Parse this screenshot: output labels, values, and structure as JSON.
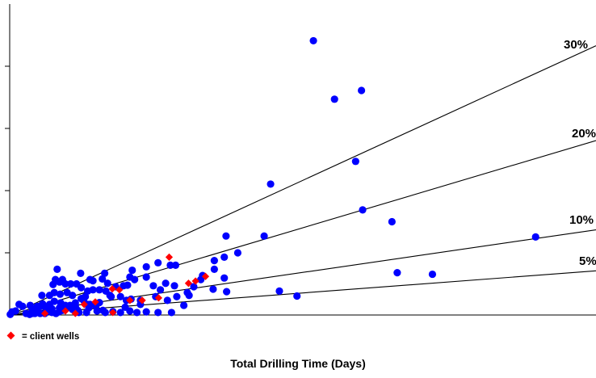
{
  "chart_data": {
    "type": "scatter",
    "title": "",
    "xlabel": "Total Drilling Time (Days)",
    "ylabel": "",
    "xlim": [
      0,
      100
    ],
    "ylim": [
      0,
      100
    ],
    "legend": {
      "placement": "bottom-left",
      "marker": "diamond",
      "label": "= client wells",
      "color": "#ff0000"
    },
    "reference_lines": [
      {
        "label": "30%",
        "slope": 0.866
      },
      {
        "label": "20%",
        "slope": 0.561
      },
      {
        "label": "10%",
        "slope": 0.274
      },
      {
        "label": "5%",
        "slope": 0.142
      }
    ],
    "series": [
      {
        "color": "#0000ff",
        "marker": "circle",
        "points": [
          [
            51.8,
            88.2
          ],
          [
            55.4,
            69.4
          ],
          [
            60,
            72.2
          ],
          [
            59,
            49.4
          ],
          [
            60.2,
            33.8
          ],
          [
            65.2,
            30.0
          ],
          [
            44.5,
            42.1
          ],
          [
            36.9,
            25.4
          ],
          [
            43.4,
            25.4
          ],
          [
            89.7,
            25.1
          ],
          [
            66.1,
            13.6
          ],
          [
            72.1,
            13.1
          ],
          [
            49,
            6.1
          ],
          [
            46,
            7.7
          ],
          [
            36.6,
            11.9
          ],
          [
            38.9,
            20.0
          ],
          [
            36.6,
            18.6
          ],
          [
            34.9,
            17.5
          ],
          [
            34.9,
            14.7
          ],
          [
            30.6,
            6.3
          ],
          [
            32.9,
            12.7
          ],
          [
            25.3,
            16.8
          ],
          [
            23.3,
            15.5
          ],
          [
            21.3,
            11.4
          ],
          [
            20.9,
            14.4
          ],
          [
            20.5,
            12.2
          ],
          [
            20.1,
            9.6
          ],
          [
            25.7,
            8.1
          ],
          [
            24.5,
            9.4
          ],
          [
            23.3,
            12.2
          ],
          [
            26.6,
            10.2
          ],
          [
            28.1,
            9.4
          ],
          [
            31.4,
            9.1
          ],
          [
            30.3,
            7.2
          ],
          [
            34.7,
            8.3
          ],
          [
            37.0,
            7.5
          ],
          [
            28.5,
            5.9
          ],
          [
            24.9,
            5.9
          ],
          [
            26.9,
            4.7
          ],
          [
            29.7,
            3.1
          ],
          [
            22.3,
            4.7
          ],
          [
            20.7,
            5.1
          ],
          [
            18.9,
            5.9
          ],
          [
            17.3,
            5.9
          ],
          [
            15.3,
            4.0
          ],
          [
            13.7,
            3.4
          ],
          [
            11.2,
            2.7
          ],
          [
            10,
            2.7
          ],
          [
            8.5,
            2.3
          ],
          [
            7.2,
            2.0
          ],
          [
            5.6,
            3.6
          ],
          [
            4.4,
            2.0
          ],
          [
            3.8,
            1.3
          ],
          [
            20.5,
            1.3
          ],
          [
            23.3,
            1.0
          ],
          [
            27.6,
            0.8
          ],
          [
            25.3,
            0.8
          ],
          [
            21.7,
            0.8
          ],
          [
            18.9,
            0.8
          ],
          [
            17.6,
            1.1
          ],
          [
            16.3,
            0.8
          ],
          [
            15.9,
            1.5
          ],
          [
            14.9,
            1.3
          ],
          [
            13.1,
            0.8
          ],
          [
            11.8,
            0.8
          ],
          [
            11.6,
            1.5
          ],
          [
            10.7,
            1.8
          ],
          [
            9.8,
            2.3
          ],
          [
            9.0,
            1.5
          ],
          [
            8.4,
            1.0
          ],
          [
            7.9,
            0.5
          ],
          [
            7.2,
            0.8
          ],
          [
            6.6,
            1.3
          ],
          [
            6.0,
            0.5
          ],
          [
            5.2,
            0.5
          ],
          [
            4.7,
            0.8
          ],
          [
            4.3,
            0.5
          ],
          [
            3.8,
            0.5
          ],
          [
            3.4,
            0.2
          ],
          [
            2.8,
            0.5
          ],
          [
            14.7,
            2.8
          ],
          [
            13.5,
            2.3
          ],
          [
            13.3,
            3.4
          ],
          [
            12.6,
            4.7
          ],
          [
            12.2,
            5.3
          ],
          [
            11.2,
            3.9
          ],
          [
            10.3,
            3.1
          ],
          [
            9.5,
            3.1
          ],
          [
            8.7,
            3.9
          ],
          [
            7.6,
            4.4
          ],
          [
            6.8,
            3.4
          ],
          [
            6.1,
            2.5
          ],
          [
            5.2,
            2.8
          ],
          [
            4.7,
            2.8
          ],
          [
            3.5,
            3.1
          ],
          [
            2.2,
            2.8
          ],
          [
            1.6,
            3.4
          ],
          [
            1.0,
            1.3
          ],
          [
            0.4,
            1.0
          ],
          [
            0.1,
            0.2
          ],
          [
            12.9,
            5.9
          ],
          [
            10.7,
            6.3
          ],
          [
            9.8,
            7.2
          ],
          [
            8.6,
            6.7
          ],
          [
            7.6,
            7.2
          ],
          [
            6.8,
            6.3
          ],
          [
            5.5,
            6.3
          ],
          [
            17.1,
            6.3
          ],
          [
            16.4,
            7.7
          ],
          [
            15.3,
            8.1
          ],
          [
            14.2,
            8.1
          ],
          [
            13.3,
            7.7
          ],
          [
            12.2,
            8.8
          ],
          [
            11.4,
            10.0
          ],
          [
            10.4,
            10.0
          ],
          [
            9.5,
            10.0
          ],
          [
            9.0,
            11.4
          ],
          [
            8.5,
            10.6
          ],
          [
            7.8,
            11.4
          ],
          [
            7.4,
            9.8
          ],
          [
            8.1,
            14.7
          ],
          [
            16.7,
            10.2
          ],
          [
            18.1,
            9.1
          ],
          [
            19.4,
            9.4
          ],
          [
            14.2,
            11.0
          ],
          [
            15.8,
            11.6
          ],
          [
            16.2,
            13.4
          ],
          [
            28.3,
            16.0
          ],
          [
            32.6,
            11.4
          ],
          [
            22.3,
            3.4
          ],
          [
            19.7,
            2.5
          ],
          [
            19.9,
            4.7
          ],
          [
            12.1,
            13.4
          ],
          [
            13.7,
            11.4
          ],
          [
            27.4,
            16.0
          ]
        ]
      },
      {
        "color": "#ff0000",
        "marker": "diamond",
        "points": [
          [
            27.2,
            18.6
          ],
          [
            33.4,
            12.4
          ],
          [
            30.5,
            10.2
          ],
          [
            31.7,
            10.9
          ],
          [
            25.4,
            5.5
          ],
          [
            22.6,
            4.7
          ],
          [
            18.7,
            8.1
          ],
          [
            17.5,
            8.4
          ],
          [
            14.6,
            4.2
          ],
          [
            12.7,
            3.4
          ],
          [
            9.5,
            1.3
          ],
          [
            11.2,
            0.5
          ],
          [
            6.0,
            0.5
          ],
          [
            20.5,
            4.7
          ],
          [
            17.6,
            0.8
          ]
        ]
      }
    ]
  }
}
